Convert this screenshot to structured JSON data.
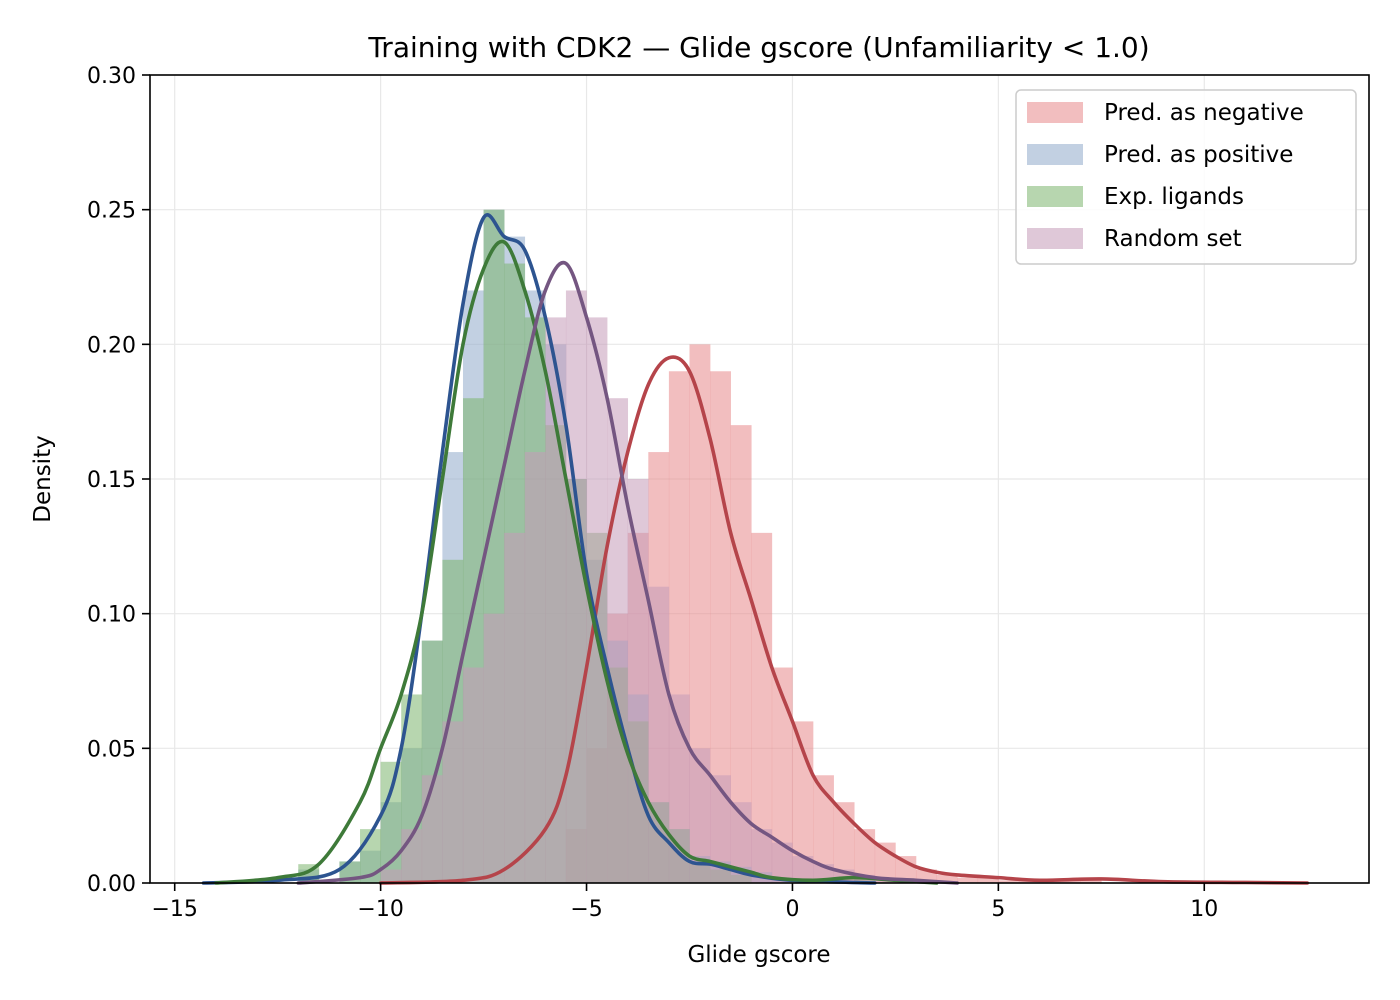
{
  "chart_data": {
    "type": "histogram-kde",
    "title": "Training with CDK2 — Glide gscore (Unfamiliarity < 1.0)",
    "xlabel": "Glide gscore",
    "ylabel": "Density",
    "xlim": [
      -15.6,
      14.0
    ],
    "ylim": [
      0,
      0.3
    ],
    "xticks": [
      -15,
      -10,
      -5,
      0,
      5,
      10
    ],
    "xtick_labels": [
      "−15",
      "−10",
      "−5",
      "0",
      "5",
      "10"
    ],
    "yticks": [
      0,
      0.05,
      0.1,
      0.15,
      0.2,
      0.25,
      0.3
    ],
    "ytick_labels": [
      "0.00",
      "0.05",
      "0.10",
      "0.15",
      "0.20",
      "0.25",
      "0.30"
    ],
    "grid": true,
    "legend_position": "top-right",
    "bin_width": 0.5,
    "series": [
      {
        "name": "Pred. as negative",
        "fill": "#e8888a",
        "line": "#b5444a",
        "hist": [
          [
            -5.5,
            0.02
          ],
          [
            -5.0,
            0.05
          ],
          [
            -4.5,
            0.1
          ],
          [
            -4.0,
            0.13
          ],
          [
            -3.5,
            0.16
          ],
          [
            -3.0,
            0.19
          ],
          [
            -2.5,
            0.2
          ],
          [
            -2.0,
            0.19
          ],
          [
            -1.5,
            0.17
          ],
          [
            -1.0,
            0.13
          ],
          [
            -0.5,
            0.08
          ],
          [
            0.0,
            0.06
          ],
          [
            0.5,
            0.04
          ],
          [
            1.0,
            0.03
          ],
          [
            1.5,
            0.02
          ],
          [
            2.0,
            0.015
          ],
          [
            2.5,
            0.01
          ],
          [
            3.0,
            0.005
          ],
          [
            3.5,
            0.003
          ],
          [
            4.0,
            0.002
          ],
          [
            4.5,
            0.002
          ],
          [
            5.0,
            0.001
          ],
          [
            5.5,
            0.001
          ],
          [
            6.0,
            0.001
          ],
          [
            6.5,
            0.001
          ],
          [
            7.0,
            0.001
          ]
        ],
        "kde": [
          [
            -10.0,
            0.0
          ],
          [
            -8.0,
            0.001
          ],
          [
            -7.0,
            0.005
          ],
          [
            -6.0,
            0.02
          ],
          [
            -5.5,
            0.04
          ],
          [
            -5.0,
            0.08
          ],
          [
            -4.5,
            0.125
          ],
          [
            -4.0,
            0.16
          ],
          [
            -3.5,
            0.185
          ],
          [
            -3.0,
            0.195
          ],
          [
            -2.5,
            0.19
          ],
          [
            -2.0,
            0.165
          ],
          [
            -1.5,
            0.13
          ],
          [
            -1.0,
            0.105
          ],
          [
            -0.5,
            0.08
          ],
          [
            0.0,
            0.06
          ],
          [
            0.5,
            0.04
          ],
          [
            1.0,
            0.03
          ],
          [
            1.5,
            0.022
          ],
          [
            2.0,
            0.015
          ],
          [
            2.5,
            0.01
          ],
          [
            3.0,
            0.006
          ],
          [
            3.5,
            0.004
          ],
          [
            4.0,
            0.003
          ],
          [
            5.0,
            0.002
          ],
          [
            6.0,
            0.001
          ],
          [
            7.5,
            0.0015
          ],
          [
            9.0,
            0.0005
          ],
          [
            11.0,
            0.0002
          ],
          [
            12.5,
            0.0
          ]
        ]
      },
      {
        "name": "Pred. as positive",
        "fill": "#8faacb",
        "line": "#2d5490",
        "hist": [
          [
            -12.0,
            0.005
          ],
          [
            -11.0,
            0.008
          ],
          [
            -10.5,
            0.012
          ],
          [
            -10.0,
            0.03
          ],
          [
            -9.5,
            0.05
          ],
          [
            -9.0,
            0.09
          ],
          [
            -8.5,
            0.16
          ],
          [
            -8.0,
            0.22
          ],
          [
            -7.5,
            0.25
          ],
          [
            -7.0,
            0.24
          ],
          [
            -6.5,
            0.22
          ],
          [
            -6.0,
            0.2
          ],
          [
            -5.5,
            0.15
          ],
          [
            -5.0,
            0.12
          ],
          [
            -4.5,
            0.09
          ],
          [
            -4.0,
            0.07
          ],
          [
            -3.5,
            0.03
          ],
          [
            -3.0,
            0.02
          ],
          [
            -2.5,
            0.01
          ],
          [
            -2.0,
            0.008
          ],
          [
            -1.5,
            0.006
          ],
          [
            -1.0,
            0.004
          ],
          [
            -0.5,
            0.002
          ]
        ],
        "kde": [
          [
            -14.3,
            0.0
          ],
          [
            -12.5,
            0.001
          ],
          [
            -11.0,
            0.005
          ],
          [
            -10.0,
            0.025
          ],
          [
            -9.5,
            0.05
          ],
          [
            -9.0,
            0.1
          ],
          [
            -8.5,
            0.16
          ],
          [
            -8.0,
            0.215
          ],
          [
            -7.5,
            0.247
          ],
          [
            -7.0,
            0.24
          ],
          [
            -6.5,
            0.235
          ],
          [
            -6.0,
            0.21
          ],
          [
            -5.5,
            0.17
          ],
          [
            -5.0,
            0.115
          ],
          [
            -4.5,
            0.08
          ],
          [
            -4.0,
            0.05
          ],
          [
            -3.5,
            0.025
          ],
          [
            -3.0,
            0.015
          ],
          [
            -2.5,
            0.008
          ],
          [
            -2.0,
            0.007
          ],
          [
            -1.5,
            0.005
          ],
          [
            -1.0,
            0.003
          ],
          [
            0.0,
            0.001
          ],
          [
            2.0,
            0.0
          ]
        ]
      },
      {
        "name": "Exp. ligands",
        "fill": "#7bb46e",
        "line": "#3e7a39",
        "hist": [
          [
            -12.0,
            0.007
          ],
          [
            -11.0,
            0.008
          ],
          [
            -10.5,
            0.02
          ],
          [
            -10.0,
            0.045
          ],
          [
            -9.5,
            0.07
          ],
          [
            -9.0,
            0.09
          ],
          [
            -8.5,
            0.12
          ],
          [
            -8.0,
            0.18
          ],
          [
            -7.5,
            0.25
          ],
          [
            -7.0,
            0.23
          ],
          [
            -6.5,
            0.21
          ],
          [
            -6.0,
            0.17
          ],
          [
            -5.5,
            0.15
          ],
          [
            -5.0,
            0.13
          ],
          [
            -4.5,
            0.08
          ],
          [
            -4.0,
            0.06
          ],
          [
            -3.5,
            0.03
          ],
          [
            -3.0,
            0.02
          ],
          [
            -2.5,
            0.008
          ],
          [
            -2.0,
            0.005
          ],
          [
            -1.5,
            0.003
          ],
          [
            1.5,
            0.002
          ]
        ],
        "kde": [
          [
            -14.0,
            0.0
          ],
          [
            -12.5,
            0.002
          ],
          [
            -11.5,
            0.007
          ],
          [
            -10.5,
            0.03
          ],
          [
            -10.0,
            0.05
          ],
          [
            -9.5,
            0.07
          ],
          [
            -9.0,
            0.1
          ],
          [
            -8.5,
            0.15
          ],
          [
            -8.0,
            0.2
          ],
          [
            -7.5,
            0.228
          ],
          [
            -7.0,
            0.238
          ],
          [
            -6.5,
            0.22
          ],
          [
            -6.0,
            0.19
          ],
          [
            -5.5,
            0.15
          ],
          [
            -5.0,
            0.11
          ],
          [
            -4.5,
            0.075
          ],
          [
            -4.0,
            0.048
          ],
          [
            -3.5,
            0.03
          ],
          [
            -3.0,
            0.018
          ],
          [
            -2.5,
            0.01
          ],
          [
            -2.0,
            0.008
          ],
          [
            -1.5,
            0.006
          ],
          [
            -1.0,
            0.004
          ],
          [
            -0.5,
            0.002
          ],
          [
            0.5,
            0.001
          ],
          [
            1.5,
            0.002
          ],
          [
            2.5,
            0.001
          ],
          [
            3.5,
            0.0
          ]
        ]
      },
      {
        "name": "Random set",
        "fill": "#c49ab8",
        "line": "#745681",
        "hist": [
          [
            -10.0,
            0.005
          ],
          [
            -9.5,
            0.02
          ],
          [
            -9.0,
            0.04
          ],
          [
            -8.5,
            0.06
          ],
          [
            -8.0,
            0.08
          ],
          [
            -7.5,
            0.1
          ],
          [
            -7.0,
            0.13
          ],
          [
            -6.5,
            0.16
          ],
          [
            -6.0,
            0.21
          ],
          [
            -5.5,
            0.22
          ],
          [
            -5.0,
            0.21
          ],
          [
            -4.5,
            0.18
          ],
          [
            -4.0,
            0.15
          ],
          [
            -3.5,
            0.11
          ],
          [
            -3.0,
            0.07
          ],
          [
            -2.5,
            0.05
          ],
          [
            -2.0,
            0.04
          ],
          [
            -1.5,
            0.03
          ],
          [
            -1.0,
            0.02
          ],
          [
            -0.5,
            0.015
          ],
          [
            0.0,
            0.01
          ],
          [
            0.5,
            0.007
          ],
          [
            1.0,
            0.005
          ],
          [
            1.5,
            0.003
          ],
          [
            2.0,
            0.002
          ]
        ],
        "kde": [
          [
            -12.0,
            0.0
          ],
          [
            -10.5,
            0.002
          ],
          [
            -10.0,
            0.005
          ],
          [
            -9.5,
            0.012
          ],
          [
            -9.0,
            0.025
          ],
          [
            -8.5,
            0.05
          ],
          [
            -8.0,
            0.085
          ],
          [
            -7.5,
            0.12
          ],
          [
            -7.0,
            0.155
          ],
          [
            -6.5,
            0.19
          ],
          [
            -6.0,
            0.22
          ],
          [
            -5.5,
            0.23
          ],
          [
            -5.0,
            0.21
          ],
          [
            -4.5,
            0.18
          ],
          [
            -4.0,
            0.14
          ],
          [
            -3.5,
            0.105
          ],
          [
            -3.0,
            0.07
          ],
          [
            -2.5,
            0.05
          ],
          [
            -2.0,
            0.04
          ],
          [
            -1.5,
            0.03
          ],
          [
            -1.0,
            0.022
          ],
          [
            -0.5,
            0.017
          ],
          [
            0.0,
            0.012
          ],
          [
            0.5,
            0.008
          ],
          [
            1.0,
            0.005
          ],
          [
            2.0,
            0.002
          ],
          [
            3.0,
            0.001
          ],
          [
            4.0,
            0.0
          ]
        ]
      }
    ]
  }
}
